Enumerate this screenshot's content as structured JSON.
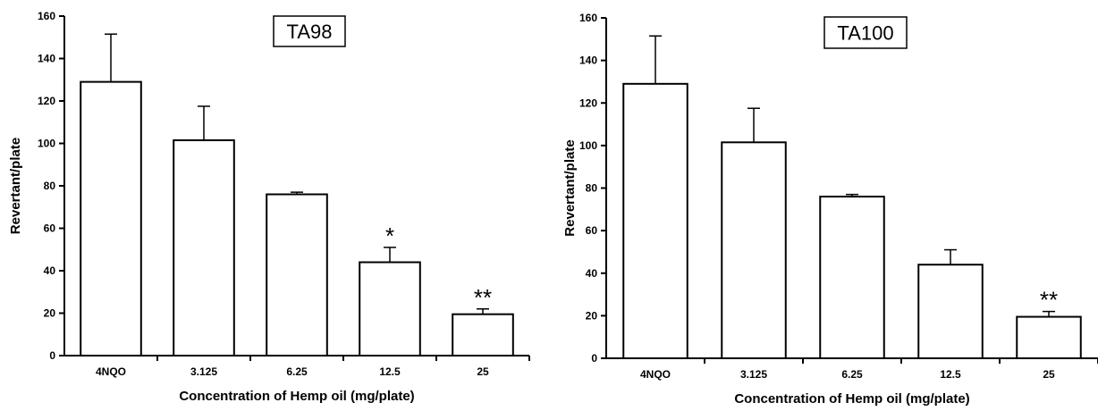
{
  "chart_data": [
    {
      "type": "bar",
      "title": "TA98",
      "xlabel": "Concentration of Hemp oil (mg/plate)",
      "ylabel": "Revertant/plate",
      "ylim": [
        0,
        160
      ],
      "yticks": [
        0,
        20,
        40,
        60,
        80,
        100,
        120,
        140,
        160
      ],
      "categories": [
        "4NQO",
        "3.125",
        "6.25",
        "12.5",
        "25"
      ],
      "values": [
        129,
        101.5,
        76,
        44,
        19.5
      ],
      "errors": [
        22.5,
        16,
        1,
        7,
        2.5
      ],
      "annotations": [
        "",
        "",
        "",
        "*",
        "**"
      ],
      "grid": false,
      "legend": "none"
    },
    {
      "type": "bar",
      "title": "TA100",
      "xlabel": "Concentration of Hemp oil (mg/plate)",
      "ylabel": "Revertant/plate",
      "ylim": [
        0,
        160
      ],
      "yticks": [
        0,
        20,
        40,
        60,
        80,
        100,
        120,
        140,
        160
      ],
      "categories": [
        "4NQO",
        "3.125",
        "6.25",
        "12.5",
        "25"
      ],
      "values": [
        129,
        101.5,
        76,
        44,
        19.5
      ],
      "errors": [
        22.5,
        16,
        1,
        7,
        2.5
      ],
      "annotations": [
        "",
        "",
        "",
        "",
        "**"
      ],
      "grid": false,
      "legend": "none"
    }
  ]
}
